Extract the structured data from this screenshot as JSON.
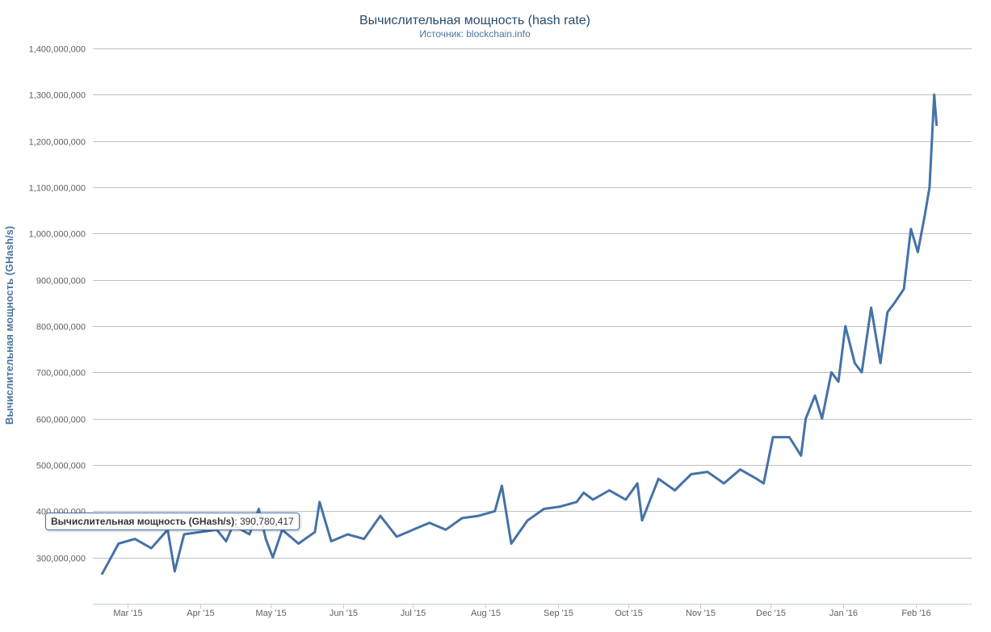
{
  "chart_data": {
    "type": "line",
    "title": "Вычислительная мощность (hash rate)",
    "subtitle": "Источник: blockchain.info",
    "ylabel": "Вычислительная мощность (GHash/s)",
    "ylim": [
      200000000,
      1400000000
    ],
    "ytick_values": [
      300000000,
      400000000,
      500000000,
      600000000,
      700000000,
      800000000,
      900000000,
      1000000000,
      1100000000,
      1200000000,
      1300000000,
      1400000000
    ],
    "ytick_labels": [
      "300,000,000",
      "400,000,000",
      "500,000,000",
      "600,000,000",
      "700,000,000",
      "800,000,000",
      "900,000,000",
      "1,000,000,000",
      "1,100,000,000",
      "1,200,000,000",
      "1,300,000,000",
      "1,400,000,000"
    ],
    "xlim": [
      "2015-02-14",
      "2016-02-25"
    ],
    "xtick_dates": [
      "2015-03-01",
      "2015-04-01",
      "2015-05-01",
      "2015-06-01",
      "2015-07-01",
      "2015-08-01",
      "2015-09-01",
      "2015-10-01",
      "2015-11-01",
      "2015-12-01",
      "2016-01-01",
      "2016-02-01"
    ],
    "xtick_labels": [
      "Mar '15",
      "Apr '15",
      "May '15",
      "Jun '15",
      "Jul '15",
      "Aug '15",
      "Sep '15",
      "Oct '15",
      "Nov '15",
      "Dec '15",
      "Jan '16",
      "Feb '16"
    ],
    "grid": true,
    "series": [
      {
        "name": "Вычислительная мощность (GHash/s)",
        "color": "#4572a7",
        "x": [
          "2015-02-18",
          "2015-02-25",
          "2015-03-04",
          "2015-03-11",
          "2015-03-18",
          "2015-03-21",
          "2015-03-25",
          "2015-04-01",
          "2015-04-08",
          "2015-04-12",
          "2015-04-15",
          "2015-04-22",
          "2015-04-26",
          "2015-04-29",
          "2015-05-02",
          "2015-05-06",
          "2015-05-13",
          "2015-05-20",
          "2015-05-22",
          "2015-05-27",
          "2015-06-03",
          "2015-06-10",
          "2015-06-17",
          "2015-06-24",
          "2015-07-01",
          "2015-07-08",
          "2015-07-15",
          "2015-07-22",
          "2015-07-29",
          "2015-08-05",
          "2015-08-08",
          "2015-08-12",
          "2015-08-19",
          "2015-08-26",
          "2015-09-02",
          "2015-09-09",
          "2015-09-12",
          "2015-09-16",
          "2015-09-23",
          "2015-09-30",
          "2015-10-05",
          "2015-10-07",
          "2015-10-14",
          "2015-10-21",
          "2015-10-28",
          "2015-11-04",
          "2015-11-11",
          "2015-11-18",
          "2015-11-25",
          "2015-11-28",
          "2015-12-02",
          "2015-12-09",
          "2015-12-14",
          "2015-12-16",
          "2015-12-20",
          "2015-12-23",
          "2015-12-27",
          "2015-12-30",
          "2016-01-02",
          "2016-01-06",
          "2016-01-09",
          "2016-01-13",
          "2016-01-17",
          "2016-01-20",
          "2016-01-23",
          "2016-01-27",
          "2016-01-30",
          "2016-02-02",
          "2016-02-05",
          "2016-02-07",
          "2016-02-09",
          "2016-02-10"
        ],
        "y": [
          265000000,
          330000000,
          340000000,
          320000000,
          360000000,
          270000000,
          350000000,
          355000000,
          360000000,
          335000000,
          370000000,
          350000000,
          405000000,
          340000000,
          300000000,
          360000000,
          330000000,
          355000000,
          420000000,
          335000000,
          350000000,
          340000000,
          390000000,
          345000000,
          360000000,
          375000000,
          360000000,
          385000000,
          390000000,
          400000000,
          455000000,
          330000000,
          380000000,
          405000000,
          410000000,
          420000000,
          440000000,
          425000000,
          445000000,
          425000000,
          460000000,
          380000000,
          470000000,
          445000000,
          480000000,
          485000000,
          460000000,
          490000000,
          470000000,
          460000000,
          560000000,
          560000000,
          520000000,
          600000000,
          650000000,
          600000000,
          700000000,
          680000000,
          800000000,
          720000000,
          700000000,
          840000000,
          720000000,
          830000000,
          850000000,
          880000000,
          1010000000,
          960000000,
          1040000000,
          1100000000,
          1300000000,
          1235000000
        ]
      }
    ]
  },
  "tooltip": {
    "series_label": "Вычислительная мощность (GHash/s)",
    "value": "390,780,417"
  }
}
